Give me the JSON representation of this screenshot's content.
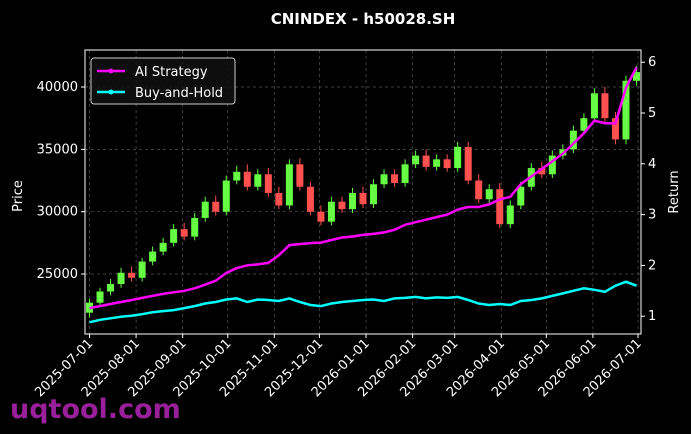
{
  "chart_data": {
    "type": "candlestick",
    "title": "CNINDEX - h50028.SH",
    "ylabel": "Price",
    "y2label": "Return",
    "watermark": "uqtool.com",
    "x": [
      "2025-07-01",
      "2025-07-08",
      "2025-07-15",
      "2025-07-22",
      "2025-07-29",
      "2025-08-05",
      "2025-08-12",
      "2025-08-19",
      "2025-08-26",
      "2025-09-02",
      "2025-09-09",
      "2025-09-16",
      "2025-09-23",
      "2025-09-30",
      "2025-10-07",
      "2025-10-14",
      "2025-10-21",
      "2025-10-28",
      "2025-11-04",
      "2025-11-11",
      "2025-11-18",
      "2025-11-25",
      "2025-12-02",
      "2025-12-09",
      "2025-12-16",
      "2025-12-23",
      "2025-12-30",
      "2026-01-06",
      "2026-01-13",
      "2026-01-20",
      "2026-01-27",
      "2026-02-03",
      "2026-02-10",
      "2026-02-17",
      "2026-02-24",
      "2026-03-03",
      "2026-03-10",
      "2026-03-17",
      "2026-03-24",
      "2026-03-31",
      "2026-04-07",
      "2026-04-14",
      "2026-04-21",
      "2026-04-28",
      "2026-05-05",
      "2026-05-12",
      "2026-05-19",
      "2026-05-26",
      "2026-06-02",
      "2026-06-09",
      "2026-06-16",
      "2026-06-23",
      "2026-06-30"
    ],
    "open": [
      21900,
      22700,
      23600,
      24200,
      25100,
      24700,
      26000,
      26800,
      27500,
      28600,
      28000,
      29500,
      30800,
      30000,
      32500,
      33200,
      32000,
      33000,
      31500,
      30500,
      33800,
      32000,
      30000,
      29200,
      30800,
      30200,
      31500,
      30600,
      32200,
      33000,
      32300,
      33800,
      34500,
      33600,
      34200,
      33500,
      35200,
      32500,
      31000,
      31800,
      29000,
      30500,
      32000,
      33500,
      33000,
      34500,
      35000,
      36500,
      37500,
      39500,
      37500,
      35800,
      40500
    ],
    "high": [
      23000,
      23900,
      24600,
      25500,
      25600,
      26300,
      27200,
      27900,
      29000,
      29100,
      29900,
      31200,
      31300,
      32900,
      33700,
      33800,
      33400,
      33500,
      32000,
      34200,
      34300,
      32400,
      30500,
      31200,
      31200,
      31900,
      32000,
      32600,
      33400,
      33400,
      34200,
      34900,
      35000,
      34600,
      34600,
      35600,
      35600,
      33000,
      32200,
      32300,
      30900,
      32400,
      33900,
      34000,
      34900,
      35400,
      36900,
      37900,
      39900,
      40000,
      38000,
      40900,
      41700
    ],
    "low": [
      21500,
      22400,
      23300,
      23900,
      24400,
      24400,
      25700,
      26500,
      27200,
      27700,
      27700,
      29200,
      29700,
      29700,
      32200,
      31700,
      31700,
      31200,
      30200,
      30200,
      31700,
      29700,
      28900,
      28900,
      29900,
      29900,
      30300,
      30300,
      31900,
      32000,
      32000,
      33500,
      33300,
      33300,
      33200,
      33200,
      32200,
      30700,
      30700,
      28700,
      28700,
      30200,
      31700,
      32700,
      32700,
      34200,
      34700,
      36200,
      37200,
      37200,
      35400,
      35400,
      40100
    ],
    "close": [
      22700,
      23600,
      24200,
      25100,
      24700,
      26000,
      26800,
      27500,
      28600,
      28000,
      29500,
      30800,
      30000,
      32500,
      33200,
      32000,
      33000,
      31500,
      30500,
      33800,
      32000,
      30000,
      29200,
      30800,
      30200,
      31500,
      30600,
      32200,
      33000,
      32300,
      33800,
      34500,
      33600,
      34200,
      33500,
      35200,
      32500,
      31000,
      31800,
      29000,
      30500,
      32000,
      33500,
      33000,
      34500,
      35000,
      36500,
      37500,
      39500,
      37500,
      35800,
      40500,
      41200
    ],
    "up_color": "#66ff44",
    "down_color": "#ff5050",
    "series": [
      {
        "name": "AI Strategy",
        "color": "#ff00ff",
        "axis": "y2",
        "values": [
          1.16,
          1.2,
          1.24,
          1.28,
          1.32,
          1.36,
          1.4,
          1.44,
          1.47,
          1.5,
          1.55,
          1.62,
          1.7,
          1.85,
          1.95,
          2.0,
          2.02,
          2.05,
          2.2,
          2.4,
          2.42,
          2.44,
          2.45,
          2.5,
          2.55,
          2.57,
          2.6,
          2.62,
          2.65,
          2.7,
          2.8,
          2.85,
          2.9,
          2.95,
          3.0,
          3.1,
          3.15,
          3.15,
          3.2,
          3.3,
          3.35,
          3.6,
          3.75,
          3.9,
          4.05,
          4.2,
          4.4,
          4.6,
          4.85,
          4.8,
          4.8,
          5.5,
          5.9
        ]
      },
      {
        "name": "Buy-and-Hold",
        "color": "#00ffff",
        "axis": "y2",
        "values": [
          0.88,
          0.93,
          0.96,
          0.99,
          1.01,
          1.04,
          1.08,
          1.1,
          1.12,
          1.16,
          1.2,
          1.25,
          1.28,
          1.33,
          1.35,
          1.28,
          1.33,
          1.32,
          1.3,
          1.35,
          1.28,
          1.22,
          1.2,
          1.25,
          1.28,
          1.3,
          1.32,
          1.33,
          1.3,
          1.35,
          1.36,
          1.38,
          1.35,
          1.37,
          1.36,
          1.38,
          1.32,
          1.25,
          1.22,
          1.24,
          1.22,
          1.3,
          1.32,
          1.35,
          1.4,
          1.45,
          1.5,
          1.55,
          1.52,
          1.48,
          1.6,
          1.68,
          1.6
        ]
      }
    ],
    "xlim": [
      "2025-06-28",
      "2026-07-03"
    ],
    "xticks": [
      "2025-07-01",
      "2025-08-01",
      "2025-09-01",
      "2025-10-01",
      "2025-11-01",
      "2025-12-01",
      "2026-01-01",
      "2026-02-01",
      "2026-03-01",
      "2026-04-01",
      "2026-05-01",
      "2026-06-01",
      "2026-07-01"
    ],
    "ylim": [
      20190,
      42970
    ],
    "yticks": [
      25000,
      30000,
      35000,
      40000
    ],
    "y2lim": [
      0.65,
      6.24
    ],
    "y2ticks": [
      1,
      2,
      3,
      4,
      5,
      6
    ],
    "grid": true,
    "legend": "upper left"
  }
}
